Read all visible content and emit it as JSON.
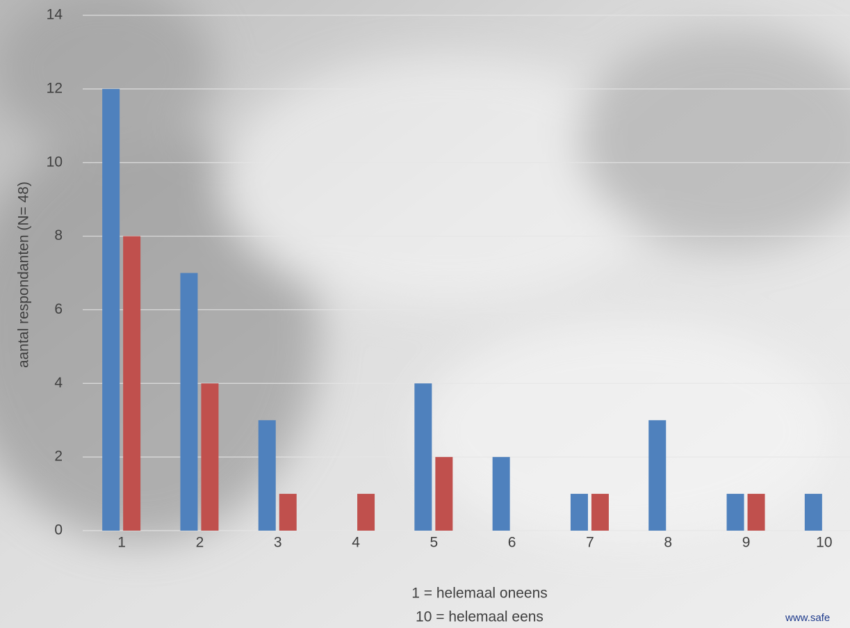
{
  "chart_data": {
    "type": "bar",
    "categories": [
      "1",
      "2",
      "3",
      "4",
      "5",
      "6",
      "7",
      "8",
      "9",
      "10"
    ],
    "series": [
      {
        "color": "#4f81bd",
        "values": [
          12,
          7,
          3,
          0,
          4,
          2,
          1,
          3,
          1,
          1
        ]
      },
      {
        "color": "#c0504d",
        "values": [
          8,
          4,
          1,
          1,
          2,
          0,
          1,
          0,
          1,
          0
        ]
      }
    ],
    "ylim": [
      0,
      14
    ],
    "yticks": [
      0,
      2,
      4,
      6,
      8,
      10,
      12,
      14
    ],
    "grid": true,
    "ylabel": "aantal respondanten (N= 48)",
    "xlabel": [
      "1 = helemaal oneens",
      "10 = helemaal eens"
    ],
    "footer": "www.safe"
  }
}
